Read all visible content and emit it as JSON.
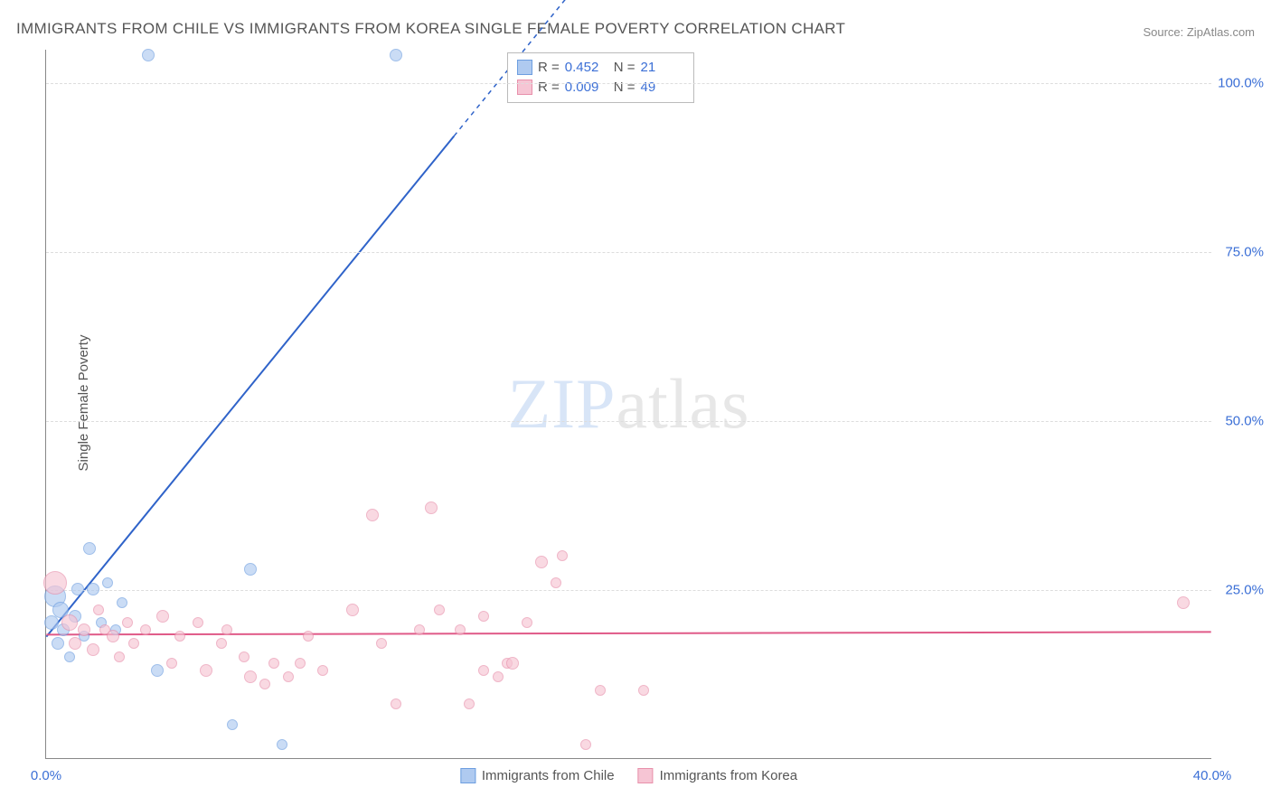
{
  "title": "IMMIGRANTS FROM CHILE VS IMMIGRANTS FROM KOREA SINGLE FEMALE POVERTY CORRELATION CHART",
  "source": "Source: ZipAtlas.com",
  "ylabel": "Single Female Poverty",
  "watermark_parts": [
    "ZIP",
    "atlas"
  ],
  "chart": {
    "type": "scatter",
    "xlim": [
      0,
      40
    ],
    "ylim": [
      0,
      105
    ],
    "x_ticks": [
      0,
      40
    ],
    "x_tick_labels": [
      "0.0%",
      "40.0%"
    ],
    "y_ticks": [
      25,
      50,
      75,
      100
    ],
    "y_tick_labels": [
      "25.0%",
      "50.0%",
      "75.0%",
      "100.0%"
    ],
    "grid_color": "#dddddd",
    "axis_color": "#888888",
    "background_color": "#ffffff",
    "series": [
      {
        "name": "Immigrants from Chile",
        "color_fill": "#afcaf0",
        "color_stroke": "#6d9ee0",
        "marker_opacity": 0.65,
        "trend_color": "#2f63c9",
        "trend_solid_to_x": 14,
        "trend_slope": 5.3,
        "trend_intercept": 18,
        "R": "0.452",
        "N": "21",
        "N_int": 21,
        "points": [
          {
            "x": 3.5,
            "y": 104,
            "r": 7
          },
          {
            "x": 12.0,
            "y": 104,
            "r": 7
          },
          {
            "x": 0.3,
            "y": 24,
            "r": 12
          },
          {
            "x": 0.5,
            "y": 22,
            "r": 9
          },
          {
            "x": 0.2,
            "y": 20,
            "r": 8
          },
          {
            "x": 0.6,
            "y": 19,
            "r": 7
          },
          {
            "x": 1.1,
            "y": 25,
            "r": 7
          },
          {
            "x": 1.5,
            "y": 31,
            "r": 7
          },
          {
            "x": 1.6,
            "y": 25,
            "r": 7
          },
          {
            "x": 2.1,
            "y": 26,
            "r": 6
          },
          {
            "x": 1.3,
            "y": 18,
            "r": 6
          },
          {
            "x": 2.4,
            "y": 19,
            "r": 6
          },
          {
            "x": 2.6,
            "y": 23,
            "r": 6
          },
          {
            "x": 7.0,
            "y": 28,
            "r": 7
          },
          {
            "x": 3.8,
            "y": 13,
            "r": 7
          },
          {
            "x": 6.4,
            "y": 5,
            "r": 6
          },
          {
            "x": 8.1,
            "y": 2,
            "r": 6
          },
          {
            "x": 0.8,
            "y": 15,
            "r": 6
          },
          {
            "x": 1.9,
            "y": 20,
            "r": 6
          },
          {
            "x": 0.4,
            "y": 17,
            "r": 7
          },
          {
            "x": 1.0,
            "y": 21,
            "r": 7
          }
        ]
      },
      {
        "name": "Immigrants from Korea",
        "color_fill": "#f6c5d4",
        "color_stroke": "#e890ab",
        "marker_opacity": 0.65,
        "trend_color": "#e05a88",
        "trend_solid_to_x": 40,
        "trend_slope": 0.01,
        "trend_intercept": 18.3,
        "R": "0.009",
        "N": "49",
        "N_int": 49,
        "points": [
          {
            "x": 0.3,
            "y": 26,
            "r": 13
          },
          {
            "x": 0.8,
            "y": 20,
            "r": 9
          },
          {
            "x": 1.0,
            "y": 17,
            "r": 7
          },
          {
            "x": 1.3,
            "y": 19,
            "r": 7
          },
          {
            "x": 1.6,
            "y": 16,
            "r": 7
          },
          {
            "x": 2.0,
            "y": 19,
            "r": 6
          },
          {
            "x": 2.3,
            "y": 18,
            "r": 7
          },
          {
            "x": 2.8,
            "y": 20,
            "r": 6
          },
          {
            "x": 3.0,
            "y": 17,
            "r": 6
          },
          {
            "x": 3.4,
            "y": 19,
            "r": 6
          },
          {
            "x": 4.0,
            "y": 21,
            "r": 7
          },
          {
            "x": 4.6,
            "y": 18,
            "r": 6
          },
          {
            "x": 5.2,
            "y": 20,
            "r": 6
          },
          {
            "x": 5.5,
            "y": 13,
            "r": 7
          },
          {
            "x": 6.0,
            "y": 17,
            "r": 6
          },
          {
            "x": 6.8,
            "y": 15,
            "r": 6
          },
          {
            "x": 7.0,
            "y": 12,
            "r": 7
          },
          {
            "x": 7.5,
            "y": 11,
            "r": 6
          },
          {
            "x": 7.8,
            "y": 14,
            "r": 6
          },
          {
            "x": 8.3,
            "y": 12,
            "r": 6
          },
          {
            "x": 8.7,
            "y": 14,
            "r": 6
          },
          {
            "x": 9.0,
            "y": 18,
            "r": 6
          },
          {
            "x": 9.5,
            "y": 13,
            "r": 6
          },
          {
            "x": 10.5,
            "y": 22,
            "r": 7
          },
          {
            "x": 11.2,
            "y": 36,
            "r": 7
          },
          {
            "x": 11.5,
            "y": 17,
            "r": 6
          },
          {
            "x": 12.0,
            "y": 8,
            "r": 6
          },
          {
            "x": 12.8,
            "y": 19,
            "r": 6
          },
          {
            "x": 13.2,
            "y": 37,
            "r": 7
          },
          {
            "x": 13.5,
            "y": 22,
            "r": 6
          },
          {
            "x": 14.2,
            "y": 19,
            "r": 6
          },
          {
            "x": 14.5,
            "y": 8,
            "r": 6
          },
          {
            "x": 15.0,
            "y": 21,
            "r": 6
          },
          {
            "x": 15.0,
            "y": 13,
            "r": 6
          },
          {
            "x": 15.5,
            "y": 12,
            "r": 6
          },
          {
            "x": 15.8,
            "y": 14,
            "r": 6
          },
          {
            "x": 16.0,
            "y": 14,
            "r": 7
          },
          {
            "x": 16.5,
            "y": 20,
            "r": 6
          },
          {
            "x": 17.0,
            "y": 29,
            "r": 7
          },
          {
            "x": 17.5,
            "y": 26,
            "r": 6
          },
          {
            "x": 17.7,
            "y": 30,
            "r": 6
          },
          {
            "x": 18.5,
            "y": 2,
            "r": 6
          },
          {
            "x": 19.0,
            "y": 10,
            "r": 6
          },
          {
            "x": 20.5,
            "y": 10,
            "r": 6
          },
          {
            "x": 1.8,
            "y": 22,
            "r": 6
          },
          {
            "x": 2.5,
            "y": 15,
            "r": 6
          },
          {
            "x": 4.3,
            "y": 14,
            "r": 6
          },
          {
            "x": 6.2,
            "y": 19,
            "r": 6
          },
          {
            "x": 39.0,
            "y": 23,
            "r": 7
          }
        ]
      }
    ]
  },
  "stats_labels": {
    "R": "R =",
    "N": "N ="
  },
  "legend_bottom": [
    "Immigrants from Chile",
    "Immigrants from Korea"
  ]
}
